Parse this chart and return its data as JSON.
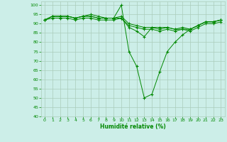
{
  "xlabel": "Humidité relative (%)",
  "xlim": [
    -0.5,
    23.5
  ],
  "ylim": [
    40,
    102
  ],
  "yticks": [
    40,
    45,
    50,
    55,
    60,
    65,
    70,
    75,
    80,
    85,
    90,
    95,
    100
  ],
  "xticks": [
    0,
    1,
    2,
    3,
    4,
    5,
    6,
    7,
    8,
    9,
    10,
    11,
    12,
    13,
    14,
    15,
    16,
    17,
    18,
    19,
    20,
    21,
    22,
    23
  ],
  "background_color": "#cceee8",
  "grid_color": "#aaccbb",
  "line_color": "#008800",
  "line1": [
    92,
    94,
    94,
    94,
    93,
    94,
    94,
    93,
    93,
    93,
    100,
    75,
    67,
    50,
    52,
    64,
    75,
    80,
    84,
    87,
    89,
    91,
    91,
    92
  ],
  "line2": [
    92,
    94,
    94,
    94,
    93,
    94,
    95,
    94,
    93,
    93,
    93,
    88,
    86,
    83,
    88,
    88,
    88,
    87,
    87,
    87,
    89,
    91,
    91,
    92
  ],
  "line3": [
    92,
    94,
    94,
    94,
    93,
    94,
    94,
    93,
    93,
    93,
    94,
    90,
    89,
    88,
    88,
    87,
    88,
    87,
    88,
    87,
    89,
    91,
    91,
    92
  ],
  "line4": [
    92,
    93,
    93,
    93,
    92,
    93,
    93,
    92,
    92,
    92,
    93,
    89,
    88,
    87,
    87,
    86,
    87,
    86,
    87,
    86,
    88,
    90,
    90,
    91
  ]
}
